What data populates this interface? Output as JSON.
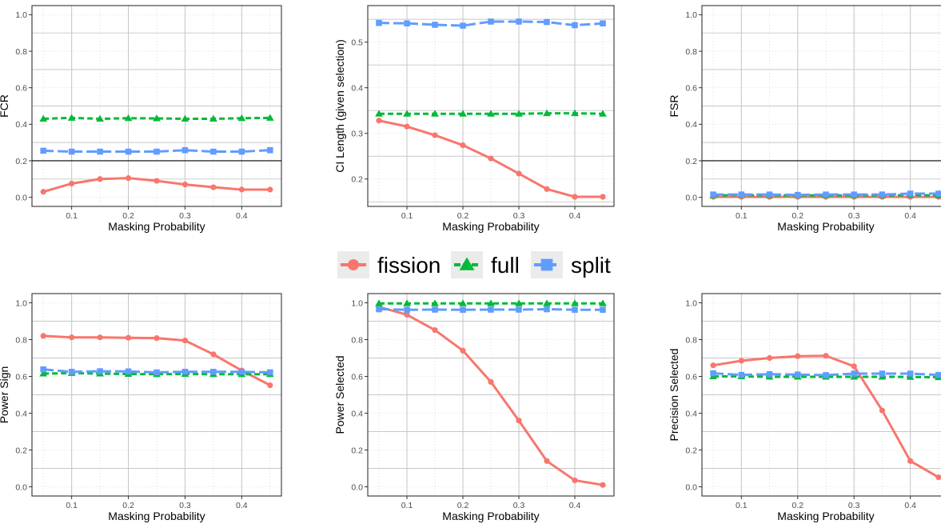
{
  "legend": {
    "position": "center",
    "entries": [
      {
        "label": "fission",
        "color": "#F8766D",
        "shape": "circle",
        "linetype": "solid"
      },
      {
        "label": "full",
        "color": "#00BA38",
        "shape": "triangle",
        "linetype": "dashed"
      },
      {
        "label": "split",
        "color": "#619CFF",
        "shape": "square",
        "linetype": "longdash"
      }
    ]
  },
  "chart_data": [
    {
      "type": "line",
      "title": "",
      "xlabel": "Masking Probability",
      "ylabel": "FCR",
      "x": [
        0.05,
        0.1,
        0.15,
        0.2,
        0.25,
        0.3,
        0.35,
        0.4,
        0.45
      ],
      "xlim": [
        0.03,
        0.47
      ],
      "ylim": [
        -0.05,
        1.05
      ],
      "xticks": [
        0.1,
        0.2,
        0.3,
        0.4
      ],
      "xtick_labels": [
        "0.1",
        "0.2",
        "0.3",
        "0.4"
      ],
      "yticks": [
        0.0,
        0.2,
        0.4,
        0.6,
        0.8,
        1.0
      ],
      "ytick_labels": [
        "0.0",
        "0.2",
        "0.4",
        "0.6",
        "0.8",
        "1.0"
      ],
      "reference_line": 0.2,
      "grid": true,
      "series": [
        {
          "name": "fission",
          "values": [
            0.03,
            0.075,
            0.1,
            0.105,
            0.09,
            0.07,
            0.055,
            0.042,
            0.042
          ]
        },
        {
          "name": "full",
          "values": [
            0.43,
            0.435,
            0.43,
            0.433,
            0.432,
            0.43,
            0.43,
            0.433,
            0.435
          ]
        },
        {
          "name": "split",
          "values": [
            0.255,
            0.25,
            0.25,
            0.25,
            0.25,
            0.258,
            0.25,
            0.25,
            0.258
          ]
        }
      ]
    },
    {
      "type": "line",
      "title": "",
      "xlabel": "Masking Probability",
      "ylabel": "CI Length (given selection)",
      "x": [
        0.05,
        0.1,
        0.15,
        0.2,
        0.25,
        0.3,
        0.35,
        0.4,
        0.45
      ],
      "xlim": [
        0.03,
        0.47
      ],
      "ylim": [
        0.14,
        0.58
      ],
      "xticks": [
        0.1,
        0.2,
        0.3,
        0.4
      ],
      "xtick_labels": [
        "0.1",
        "0.2",
        "0.3",
        "0.4"
      ],
      "yticks": [
        0.2,
        0.3,
        0.4,
        0.5
      ],
      "ytick_labels": [
        "0.2",
        "0.3",
        "0.4",
        "0.5"
      ],
      "reference_line": null,
      "grid": true,
      "series": [
        {
          "name": "fission",
          "values": [
            0.328,
            0.315,
            0.296,
            0.274,
            0.245,
            0.212,
            0.178,
            0.161,
            0.161
          ]
        },
        {
          "name": "full",
          "values": [
            0.343,
            0.343,
            0.343,
            0.343,
            0.343,
            0.343,
            0.344,
            0.344,
            0.343
          ]
        },
        {
          "name": "split",
          "values": [
            0.542,
            0.541,
            0.538,
            0.536,
            0.545,
            0.545,
            0.544,
            0.537,
            0.541
          ]
        }
      ]
    },
    {
      "type": "line",
      "title": "",
      "xlabel": "Masking Probability",
      "ylabel": "FSR",
      "x": [
        0.05,
        0.1,
        0.15,
        0.2,
        0.25,
        0.3,
        0.35,
        0.4,
        0.45
      ],
      "xlim": [
        0.03,
        0.47
      ],
      "ylim": [
        -0.05,
        1.05
      ],
      "xticks": [
        0.1,
        0.2,
        0.3,
        0.4
      ],
      "xtick_labels": [
        "0.1",
        "0.2",
        "0.3",
        "0.4"
      ],
      "yticks": [
        0.0,
        0.2,
        0.4,
        0.6,
        0.8,
        1.0
      ],
      "ytick_labels": [
        "0.0",
        "0.2",
        "0.4",
        "0.6",
        "0.8",
        "1.0"
      ],
      "reference_line": 0.2,
      "grid": true,
      "series": [
        {
          "name": "fission",
          "values": [
            0.002,
            0.002,
            0.002,
            0.002,
            0.002,
            0.002,
            0.002,
            0.002,
            0.002
          ]
        },
        {
          "name": "full",
          "values": [
            0.01,
            0.012,
            0.01,
            0.01,
            0.01,
            0.01,
            0.01,
            0.012,
            0.01
          ]
        },
        {
          "name": "split",
          "values": [
            0.015,
            0.015,
            0.015,
            0.013,
            0.015,
            0.015,
            0.015,
            0.02,
            0.02
          ]
        }
      ]
    },
    {
      "type": "line",
      "title": "",
      "xlabel": "Masking Probability",
      "ylabel": "Power Sign",
      "x": [
        0.05,
        0.1,
        0.15,
        0.2,
        0.25,
        0.3,
        0.35,
        0.4,
        0.45
      ],
      "xlim": [
        0.03,
        0.47
      ],
      "ylim": [
        -0.05,
        1.05
      ],
      "xticks": [
        0.1,
        0.2,
        0.3,
        0.4
      ],
      "xtick_labels": [
        "0.1",
        "0.2",
        "0.3",
        "0.4"
      ],
      "yticks": [
        0.0,
        0.2,
        0.4,
        0.6,
        0.8,
        1.0
      ],
      "ytick_labels": [
        "0.0",
        "0.2",
        "0.4",
        "0.6",
        "0.8",
        "1.0"
      ],
      "reference_line": null,
      "grid": true,
      "series": [
        {
          "name": "fission",
          "values": [
            0.82,
            0.812,
            0.812,
            0.81,
            0.808,
            0.795,
            0.72,
            0.632,
            0.552
          ]
        },
        {
          "name": "full",
          "values": [
            0.615,
            0.618,
            0.615,
            0.613,
            0.612,
            0.613,
            0.612,
            0.612,
            0.612
          ]
        },
        {
          "name": "split",
          "values": [
            0.638,
            0.625,
            0.628,
            0.627,
            0.622,
            0.625,
            0.625,
            0.625,
            0.622
          ]
        }
      ]
    },
    {
      "type": "line",
      "title": "",
      "xlabel": "Masking Probability",
      "ylabel": "Power Selected",
      "x": [
        0.05,
        0.1,
        0.15,
        0.2,
        0.25,
        0.3,
        0.35,
        0.4,
        0.45
      ],
      "xlim": [
        0.03,
        0.47
      ],
      "ylim": [
        -0.05,
        1.05
      ],
      "xticks": [
        0.1,
        0.2,
        0.3,
        0.4
      ],
      "xtick_labels": [
        "0.1",
        "0.2",
        "0.3",
        "0.4"
      ],
      "yticks": [
        0.0,
        0.2,
        0.4,
        0.6,
        0.8,
        1.0
      ],
      "ytick_labels": [
        "0.0",
        "0.2",
        "0.4",
        "0.6",
        "0.8",
        "1.0"
      ],
      "reference_line": null,
      "grid": true,
      "series": [
        {
          "name": "fission",
          "values": [
            0.978,
            0.935,
            0.852,
            0.74,
            0.57,
            0.36,
            0.14,
            0.035,
            0.01
          ]
        },
        {
          "name": "full",
          "values": [
            0.997,
            0.997,
            0.997,
            0.997,
            0.997,
            0.997,
            0.997,
            0.997,
            0.997
          ]
        },
        {
          "name": "split",
          "values": [
            0.965,
            0.962,
            0.963,
            0.962,
            0.963,
            0.963,
            0.965,
            0.962,
            0.962
          ]
        }
      ]
    },
    {
      "type": "line",
      "title": "",
      "xlabel": "Masking Probability",
      "ylabel": "Precision Selected",
      "x": [
        0.05,
        0.1,
        0.15,
        0.2,
        0.25,
        0.3,
        0.35,
        0.4,
        0.45
      ],
      "xlim": [
        0.03,
        0.47
      ],
      "ylim": [
        -0.05,
        1.05
      ],
      "xticks": [
        0.1,
        0.2,
        0.3,
        0.4
      ],
      "xtick_labels": [
        "0.1",
        "0.2",
        "0.3",
        "0.4"
      ],
      "yticks": [
        0.0,
        0.2,
        0.4,
        0.6,
        0.8,
        1.0
      ],
      "ytick_labels": [
        "0.0",
        "0.2",
        "0.4",
        "0.6",
        "0.8",
        "1.0"
      ],
      "reference_line": null,
      "grid": true,
      "series": [
        {
          "name": "fission",
          "values": [
            0.66,
            0.685,
            0.7,
            0.71,
            0.712,
            0.655,
            0.415,
            0.14,
            0.052
          ]
        },
        {
          "name": "full",
          "values": [
            0.6,
            0.6,
            0.598,
            0.598,
            0.598,
            0.598,
            0.598,
            0.597,
            0.595
          ]
        },
        {
          "name": "split",
          "values": [
            0.617,
            0.608,
            0.612,
            0.61,
            0.607,
            0.615,
            0.615,
            0.615,
            0.608
          ]
        }
      ]
    }
  ]
}
